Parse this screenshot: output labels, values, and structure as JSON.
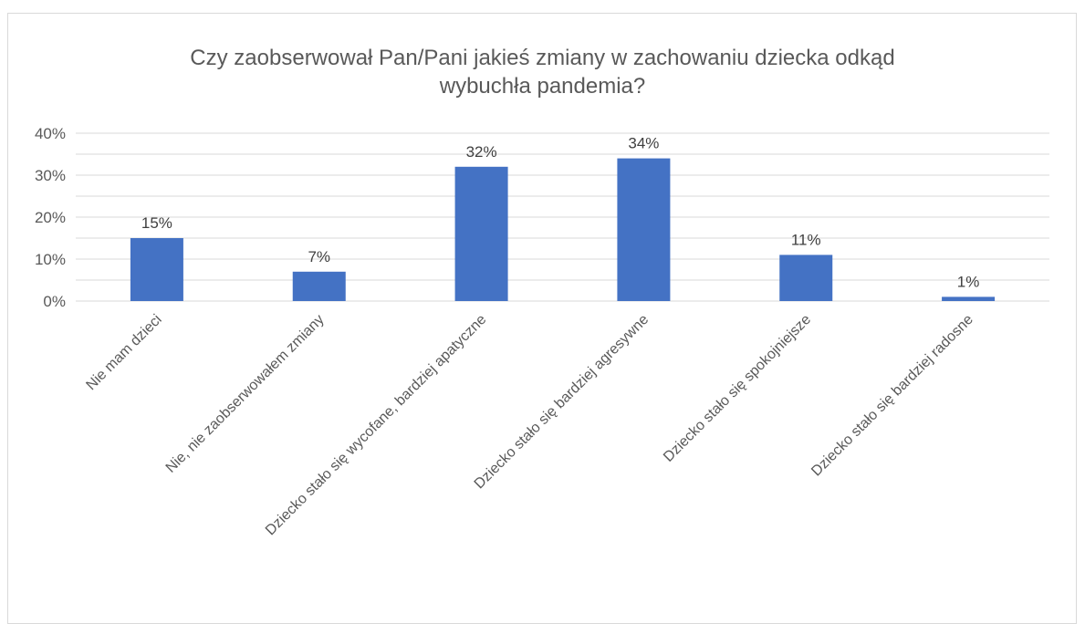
{
  "chart_data": {
    "type": "bar",
    "title_lines": [
      "Czy zaobserwował Pan/Pani jakieś zmiany w zachowaniu dziecka odkąd",
      "wybuchła pandemia?"
    ],
    "categories": [
      "Nie mam dzieci",
      "Nie, nie zaobserwowałem zmiany",
      "Dziecko stało się wycofane, bardziej apatyczne",
      "Dziecko stało się bardziej agresywne",
      "Dziecko stało się spokojniejsze",
      "Dziecko stało się bardziej radosne"
    ],
    "values": [
      15,
      7,
      32,
      34,
      11,
      1
    ],
    "data_labels": [
      "15%",
      "7%",
      "32%",
      "34%",
      "11%",
      "1%"
    ],
    "y_ticks": [
      0,
      10,
      20,
      30,
      40
    ],
    "y_tick_labels": [
      "0%",
      "10%",
      "20%",
      "30%",
      "40%"
    ],
    "ylim": [
      0,
      40
    ],
    "grid": true,
    "legend": "none",
    "bar_color": "#4472c4",
    "grid_color": "#d9d9d9"
  }
}
